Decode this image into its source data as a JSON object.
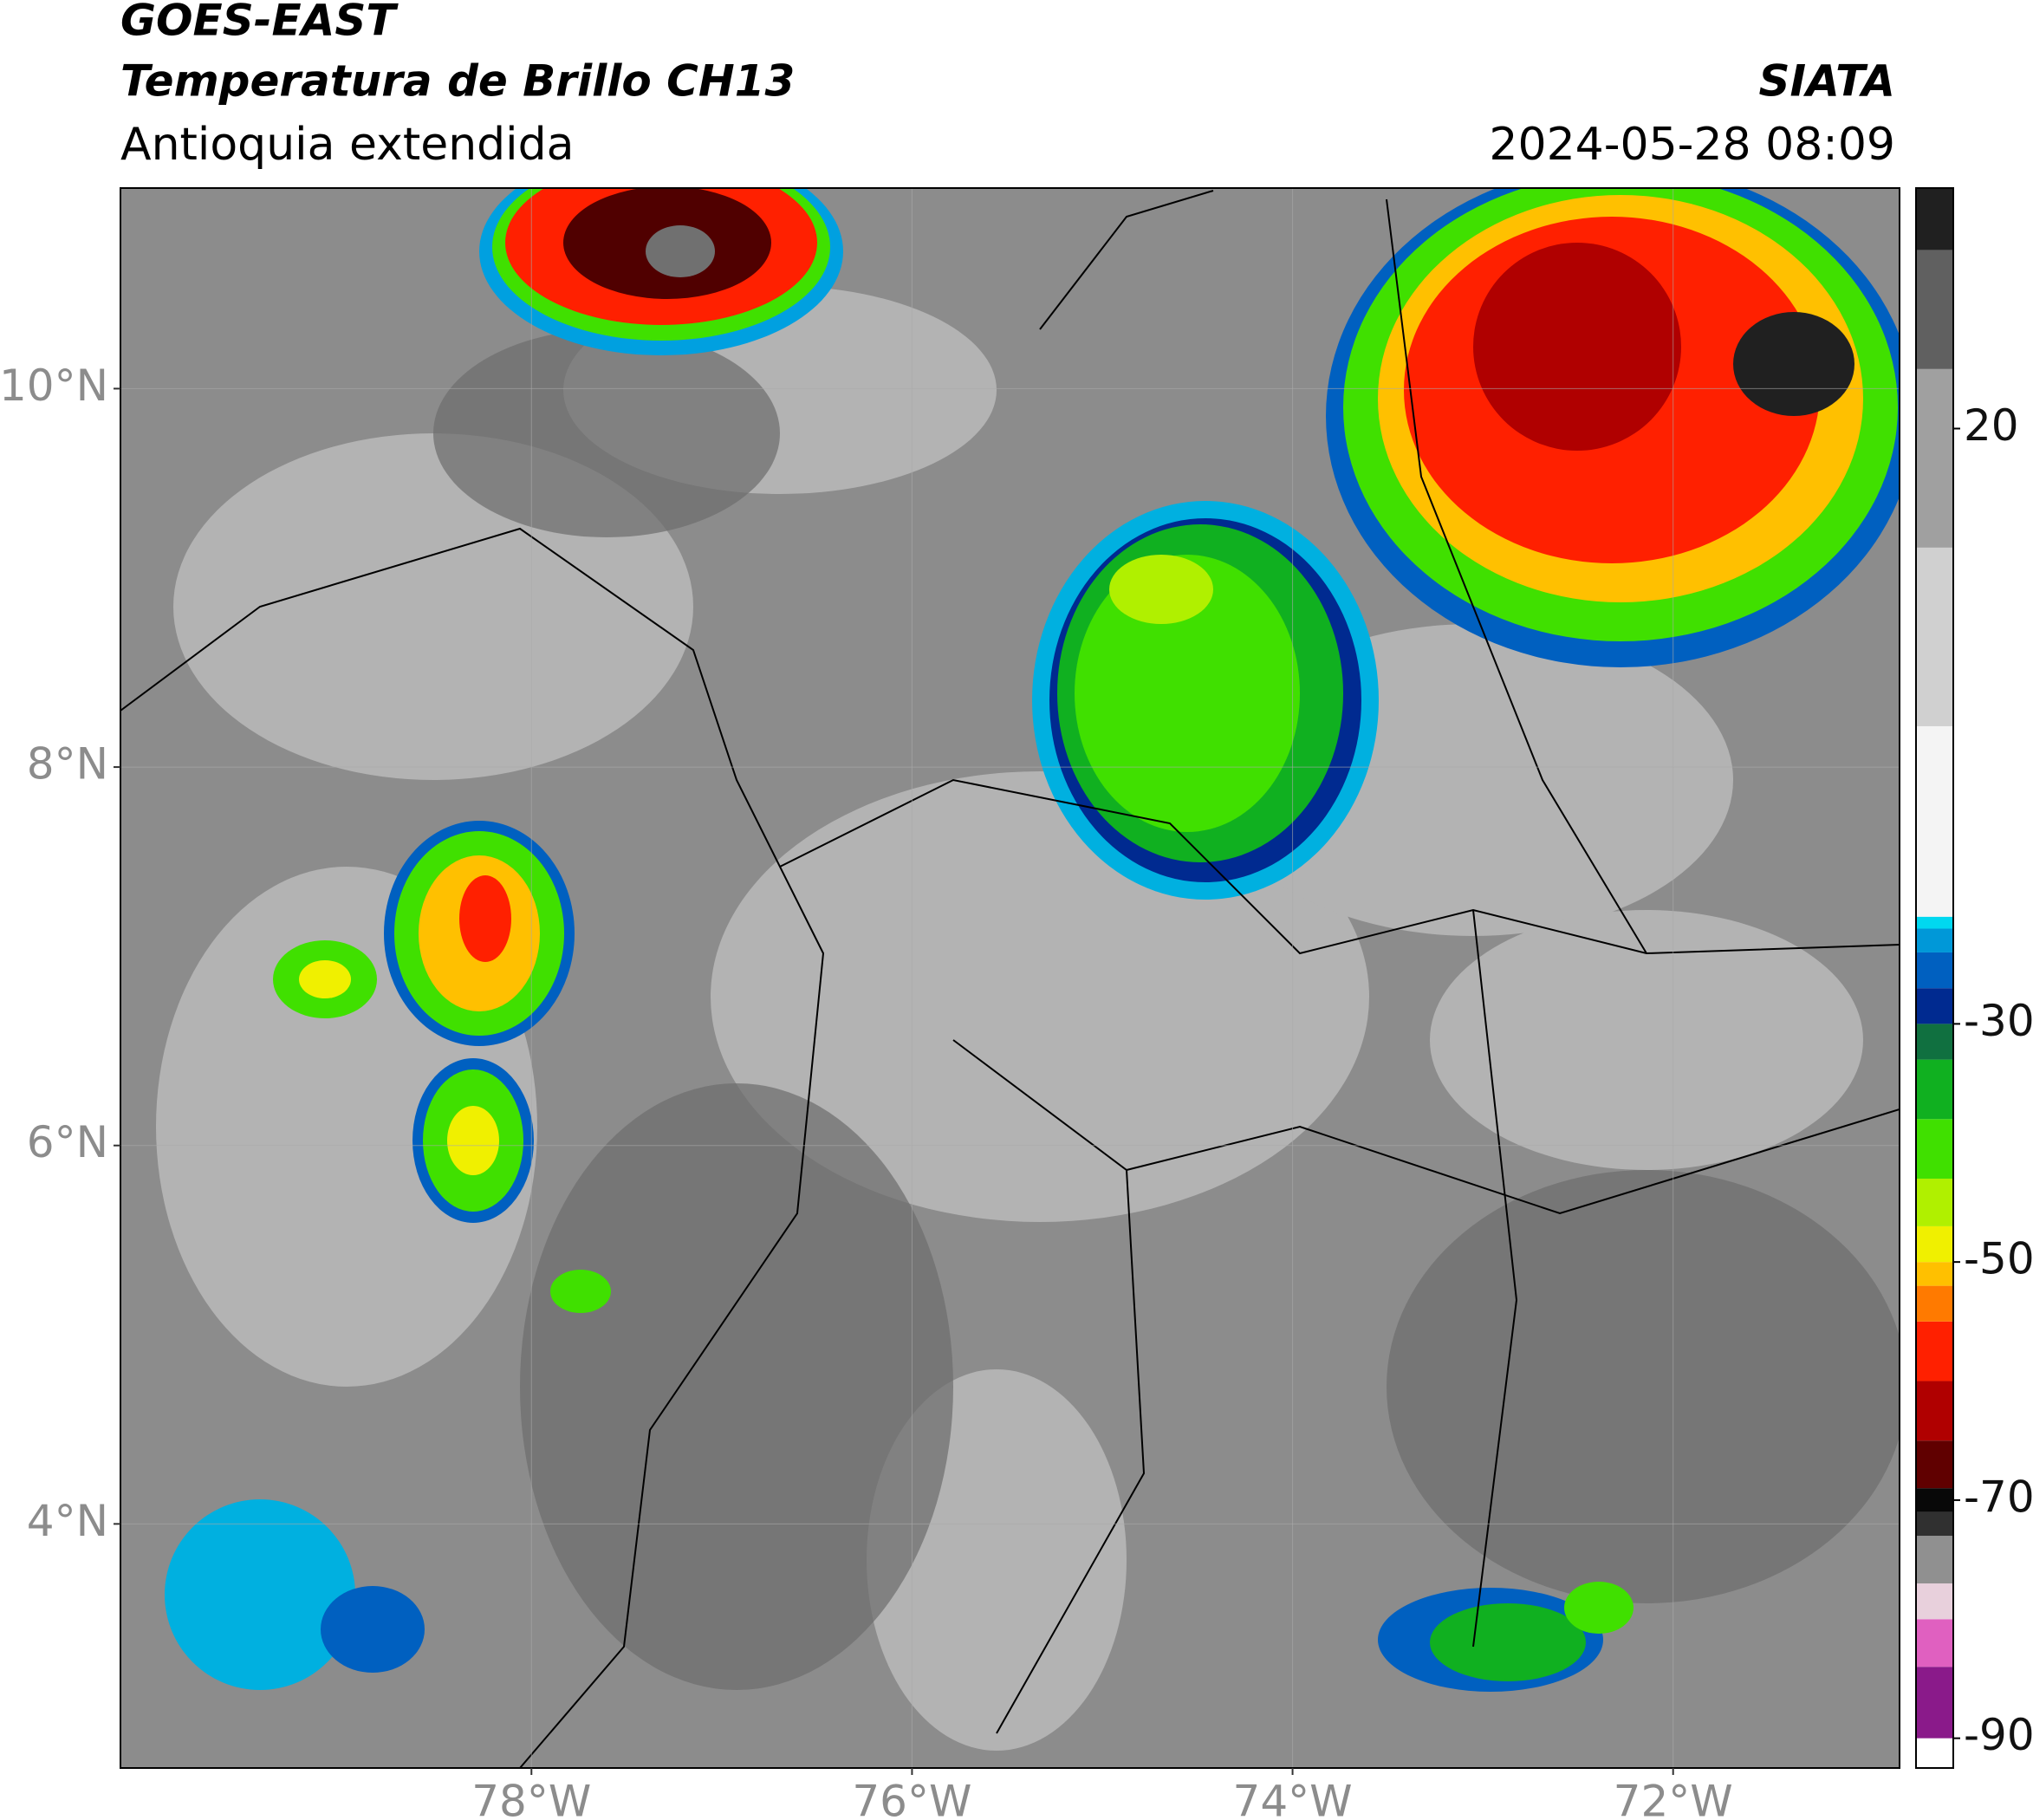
{
  "map": {
    "satellite": "GOES-EAST",
    "title": "Temperatura de Brillo CH13",
    "region": "Antioquia extendida",
    "source": "SIATA",
    "datetime": "2024-05-28 08:09",
    "xlim": [
      -80.16,
      -70.81
    ],
    "ylim": [
      2.71,
      11.06
    ],
    "xticks": [
      {
        "value": -78,
        "label": "78°W"
      },
      {
        "value": -76,
        "label": "76°W"
      },
      {
        "value": -74,
        "label": "74°W"
      },
      {
        "value": -72,
        "label": "72°W"
      }
    ],
    "yticks": [
      {
        "value": 4,
        "label": "4°N"
      },
      {
        "value": 6,
        "label": "6°N"
      },
      {
        "value": 8,
        "label": "8°N"
      },
      {
        "value": 10,
        "label": "10°N"
      }
    ],
    "grid": true,
    "colorbar": {
      "lim": [
        -92.5,
        40.2
      ],
      "ticks": [
        -90,
        -70,
        -50,
        -30,
        20
      ],
      "colormap": [
        {
          "value": -92.5,
          "color": "#ffffff"
        },
        {
          "value": -90,
          "color": "#8a1a8a"
        },
        {
          "value": -84,
          "color": "#e060c0"
        },
        {
          "value": -80,
          "color": "#e8d0dc"
        },
        {
          "value": -77,
          "color": "#909090"
        },
        {
          "value": -73,
          "color": "#303030"
        },
        {
          "value": -71,
          "color": "#080808"
        },
        {
          "value": -69,
          "color": "#600000"
        },
        {
          "value": -65,
          "color": "#b00000"
        },
        {
          "value": -60,
          "color": "#ff2000"
        },
        {
          "value": -55,
          "color": "#ff7a00"
        },
        {
          "value": -52,
          "color": "#ffc000"
        },
        {
          "value": -50,
          "color": "#f0f000"
        },
        {
          "value": -47,
          "color": "#b0f000"
        },
        {
          "value": -43,
          "color": "#40e000"
        },
        {
          "value": -38,
          "color": "#10b020"
        },
        {
          "value": -33,
          "color": "#107040"
        },
        {
          "value": -30,
          "color": "#002a90"
        },
        {
          "value": -27,
          "color": "#0060c0"
        },
        {
          "value": -24,
          "color": "#0098d8"
        },
        {
          "value": -22,
          "color": "#00d8f0"
        },
        {
          "value": -21,
          "color": "#f4f4f4"
        },
        {
          "value": -5,
          "color": "#d0d0d0"
        },
        {
          "value": 10,
          "color": "#a0a0a0"
        },
        {
          "value": 25,
          "color": "#606060"
        },
        {
          "value": 35,
          "color": "#202020"
        }
      ]
    }
  }
}
